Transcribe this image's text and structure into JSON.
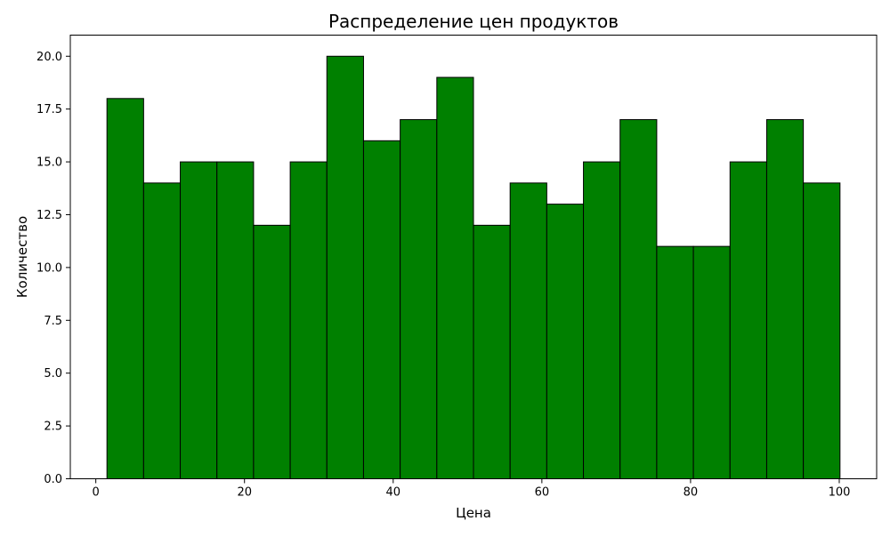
{
  "chart_data": {
    "type": "bar",
    "title": "Распределение цен продуктов",
    "xlabel": "Цена",
    "ylabel": "Количество",
    "bins": [
      {
        "start": 1.5,
        "end": 6.43,
        "value": 18
      },
      {
        "start": 6.43,
        "end": 11.36,
        "value": 14
      },
      {
        "start": 11.36,
        "end": 16.29,
        "value": 15
      },
      {
        "start": 16.29,
        "end": 21.22,
        "value": 15
      },
      {
        "start": 21.22,
        "end": 26.15,
        "value": 12
      },
      {
        "start": 26.15,
        "end": 31.08,
        "value": 15
      },
      {
        "start": 31.08,
        "end": 36.01,
        "value": 20
      },
      {
        "start": 36.01,
        "end": 40.94,
        "value": 16
      },
      {
        "start": 40.94,
        "end": 45.87,
        "value": 17
      },
      {
        "start": 45.87,
        "end": 50.8,
        "value": 19
      },
      {
        "start": 50.8,
        "end": 55.73,
        "value": 12
      },
      {
        "start": 55.73,
        "end": 60.66,
        "value": 14
      },
      {
        "start": 60.66,
        "end": 65.59,
        "value": 13
      },
      {
        "start": 65.59,
        "end": 70.52,
        "value": 15
      },
      {
        "start": 70.52,
        "end": 75.45,
        "value": 17
      },
      {
        "start": 75.45,
        "end": 80.38,
        "value": 11
      },
      {
        "start": 80.38,
        "end": 85.31,
        "value": 11
      },
      {
        "start": 85.31,
        "end": 90.24,
        "value": 15
      },
      {
        "start": 90.24,
        "end": 95.17,
        "value": 17
      },
      {
        "start": 95.17,
        "end": 100.1,
        "value": 14
      }
    ],
    "xlim": [
      -3.43,
      105.03
    ],
    "ylim": [
      0,
      21
    ],
    "xticks": [
      0,
      20,
      40,
      60,
      80,
      100
    ],
    "xtick_labels": [
      "0",
      "20",
      "40",
      "60",
      "80",
      "100"
    ],
    "yticks": [
      0,
      2.5,
      5,
      7.5,
      10,
      12.5,
      15,
      17.5,
      20
    ],
    "ytick_labels": [
      "0.0",
      "2.5",
      "5.0",
      "7.5",
      "10.0",
      "12.5",
      "15.0",
      "17.5",
      "20.0"
    ],
    "grid": false,
    "legend": "none",
    "colors": {
      "bar_fill": "#008000",
      "bar_edge": "#000000"
    }
  }
}
